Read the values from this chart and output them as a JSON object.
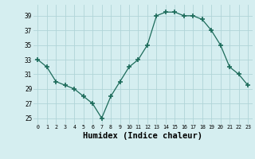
{
  "x": [
    0,
    1,
    2,
    3,
    4,
    5,
    6,
    7,
    8,
    9,
    10,
    11,
    12,
    13,
    14,
    15,
    16,
    17,
    18,
    19,
    20,
    21,
    22,
    23
  ],
  "y": [
    33,
    32,
    30,
    29.5,
    29,
    28,
    27,
    25,
    28,
    30,
    32,
    33,
    35,
    39,
    39.5,
    39.5,
    39,
    39,
    38.5,
    37,
    35,
    32,
    31,
    29.5
  ],
  "line_color": "#1c6b5a",
  "marker": "+",
  "marker_color": "#1c6b5a",
  "bg_color": "#d5eef0",
  "grid_color": "#b0d4d8",
  "xlabel": "Humidex (Indice chaleur)",
  "xlabel_fontsize": 7.5,
  "yticks": [
    25,
    27,
    29,
    31,
    33,
    35,
    37,
    39
  ],
  "xtick_labels": [
    "0",
    "1",
    "2",
    "3",
    "4",
    "5",
    "6",
    "7",
    "8",
    "9",
    "10",
    "11",
    "12",
    "13",
    "14",
    "15",
    "16",
    "17",
    "18",
    "19",
    "20",
    "21",
    "22",
    "23"
  ],
  "xlim": [
    -0.5,
    23.5
  ],
  "ylim": [
    24.2,
    40.5
  ]
}
